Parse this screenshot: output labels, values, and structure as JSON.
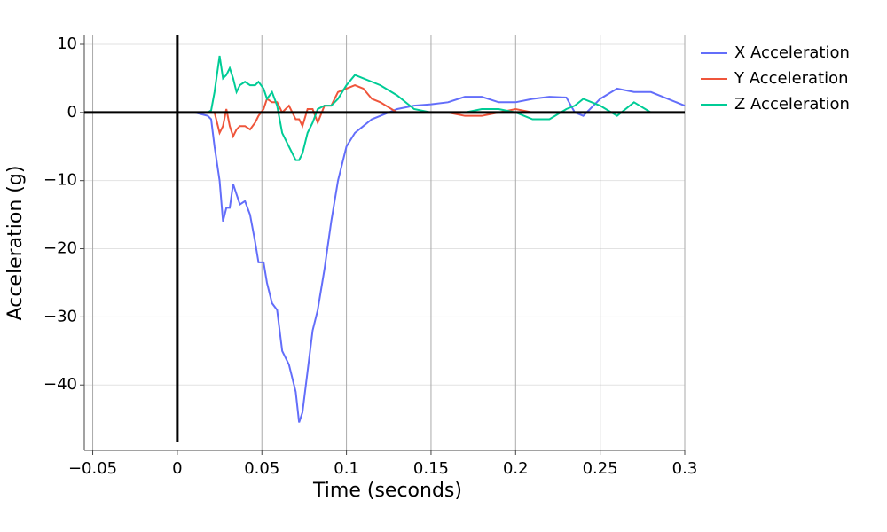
{
  "chart_data": {
    "type": "line",
    "x_label": "Time (seconds)",
    "y_label": "Acceleration (g)",
    "x": [
      -0.05,
      0,
      0.01,
      0.018,
      0.02,
      0.022,
      0.025,
      0.027,
      0.029,
      0.031,
      0.033,
      0.035,
      0.037,
      0.04,
      0.043,
      0.046,
      0.048,
      0.051,
      0.053,
      0.056,
      0.059,
      0.062,
      0.066,
      0.07,
      0.072,
      0.074,
      0.077,
      0.08,
      0.083,
      0.087,
      0.091,
      0.095,
      0.1,
      0.105,
      0.11,
      0.115,
      0.12,
      0.13,
      0.14,
      0.15,
      0.16,
      0.17,
      0.18,
      0.19,
      0.2,
      0.21,
      0.22,
      0.23,
      0.235,
      0.24,
      0.25,
      0.26,
      0.27,
      0.28,
      0.3
    ],
    "series": [
      {
        "name": "X Acceleration",
        "color": "#636efa",
        "values": [
          0,
          0,
          0,
          -0.5,
          -1,
          -5,
          -10,
          -16,
          -14,
          -14,
          -10.5,
          -12,
          -13.5,
          -13,
          -15,
          -19,
          -22,
          -22,
          -25,
          -28,
          -29,
          -35,
          -37,
          -41,
          -45.5,
          -44,
          -38,
          -32,
          -29,
          -23,
          -16,
          -10,
          -5,
          -3,
          -2,
          -1,
          -0.5,
          0.5,
          1,
          1.2,
          1.5,
          2.3,
          2.3,
          1.5,
          1.5,
          2,
          2.3,
          2.2,
          0,
          -0.5,
          2,
          3.5,
          3,
          3,
          1
        ]
      },
      {
        "name": "Y Acceleration",
        "color": "#ef553b",
        "values": [
          0,
          0,
          0,
          0,
          0,
          0,
          -3,
          -2,
          0.5,
          -2,
          -3.5,
          -2.5,
          -2,
          -2,
          -2.5,
          -1.5,
          -0.5,
          0.5,
          2,
          1.5,
          1.5,
          0,
          1,
          -1,
          -1,
          -2,
          0.5,
          0.5,
          -1.5,
          1,
          1,
          3,
          3.5,
          4,
          3.5,
          2,
          1.5,
          0,
          0,
          0,
          0,
          -0.5,
          -0.5,
          0,
          0.5,
          0,
          0,
          0,
          0,
          0,
          0,
          0,
          0,
          0,
          0
        ]
      },
      {
        "name": "Z Acceleration",
        "color": "#00cc96",
        "values": [
          0,
          0,
          0,
          0,
          0.3,
          3,
          8.3,
          5,
          5.5,
          6.5,
          5,
          3,
          4,
          4.5,
          4,
          4,
          4.5,
          3.5,
          2,
          3,
          1,
          -3,
          -5,
          -7,
          -7,
          -6,
          -3,
          -1.5,
          0.5,
          1,
          1,
          2,
          4,
          5.5,
          5,
          4.5,
          4,
          2.5,
          0.5,
          0,
          0,
          0,
          0.5,
          0.5,
          0,
          -1,
          -1,
          0.5,
          1,
          2,
          1,
          -0.5,
          1.5,
          0,
          0
        ]
      }
    ],
    "xlim": [
      -0.055,
      0.3
    ],
    "ylim": [
      -49.6,
      11.3
    ],
    "xticks": [
      {
        "value": -0.05,
        "label": "−0.05"
      },
      0,
      0.05,
      0.1,
      0.15,
      0.2,
      0.25,
      0.3
    ],
    "yticks": [
      10,
      0,
      {
        "value": -10,
        "label": "−10"
      },
      {
        "value": -20,
        "label": "−20"
      },
      {
        "value": -30,
        "label": "−30"
      },
      {
        "value": -40,
        "label": "−40"
      }
    ],
    "grid": true,
    "legend": "right"
  }
}
